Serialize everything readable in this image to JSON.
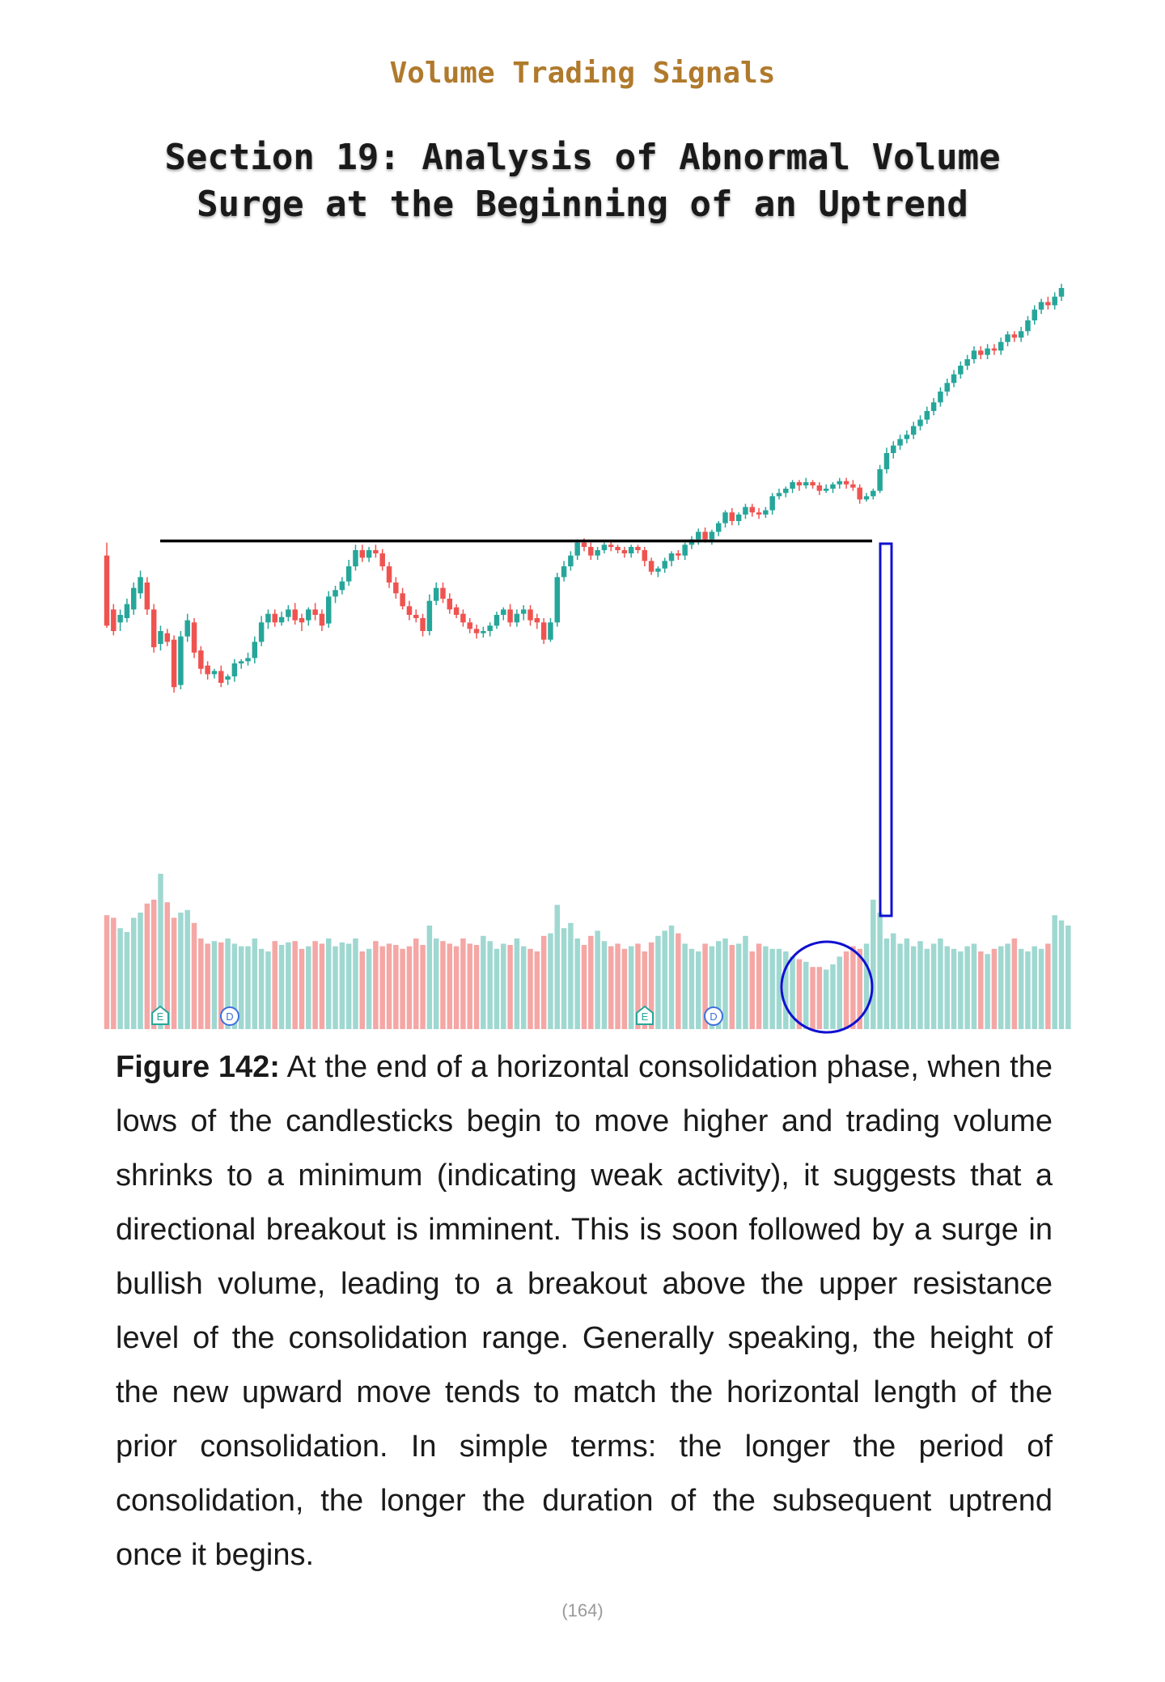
{
  "header": {
    "book_title": "Volume Trading Signals"
  },
  "section": {
    "title_line1": "Section 19: Analysis of Abnormal Volume",
    "title_line2": "Surge at the Beginning of an Uptrend"
  },
  "figure": {
    "label": "Figure 142:",
    "text": " At the end of a horizontal consolidation phase, when the lows of the candlesticks begin to move higher and trading volume shrinks to a minimum (indicating weak activity), it suggests that a directional breakout is imminent. This is soon followed by a surge in bullish volume, leading to a breakout above the upper resistance level of the consolidation range. Generally speaking, the height of the new upward move tends to match the horizontal length of the prior consolidation. In simple terms: the longer the period of consolidation, the longer the duration of the subsequent uptrend once it begins."
  },
  "footer": {
    "page_number": "(164)"
  },
  "colors": {
    "up": "#26a69a",
    "down": "#ef5350",
    "vol_up": "#9fd8d1",
    "vol_down": "#f4a7a5",
    "resistance": "#000000",
    "annotation": "#1010d0"
  },
  "chart_data": {
    "type": "candlestick",
    "title": "",
    "xlabel": "",
    "ylabel": "",
    "price": [
      [
        610,
        545,
        622,
        543
      ],
      [
        560,
        540,
        565,
        536
      ],
      [
        548,
        555,
        560,
        540
      ],
      [
        552,
        565,
        570,
        548
      ],
      [
        560,
        580,
        585,
        555
      ],
      [
        575,
        590,
        596,
        570
      ],
      [
        585,
        560,
        590,
        555
      ],
      [
        560,
        525,
        565,
        520
      ],
      [
        528,
        540,
        545,
        522
      ],
      [
        538,
        530,
        542,
        526
      ],
      [
        532,
        488,
        536,
        483
      ],
      [
        490,
        535,
        540,
        486
      ],
      [
        535,
        550,
        556,
        530
      ],
      [
        548,
        520,
        552,
        515
      ],
      [
        522,
        505,
        526,
        500
      ],
      [
        508,
        500,
        512,
        495
      ],
      [
        500,
        503,
        505,
        496
      ],
      [
        503,
        492,
        508,
        488
      ],
      [
        495,
        498,
        500,
        490
      ],
      [
        498,
        510,
        514,
        493
      ],
      [
        510,
        512,
        514,
        505
      ],
      [
        512,
        515,
        520,
        508
      ],
      [
        515,
        530,
        535,
        510
      ],
      [
        530,
        548,
        554,
        526
      ],
      [
        548,
        556,
        560,
        542
      ],
      [
        556,
        548,
        560,
        544
      ],
      [
        548,
        553,
        558,
        545
      ],
      [
        553,
        560,
        564,
        549
      ],
      [
        560,
        550,
        566,
        546
      ],
      [
        552,
        548,
        556,
        540
      ],
      [
        550,
        560,
        562,
        545
      ],
      [
        560,
        555,
        566,
        550
      ],
      [
        556,
        545,
        560,
        540
      ],
      [
        547,
        572,
        577,
        543
      ],
      [
        572,
        578,
        582,
        566
      ],
      [
        578,
        586,
        590,
        574
      ],
      [
        586,
        600,
        606,
        582
      ],
      [
        600,
        615,
        620,
        596
      ],
      [
        615,
        608,
        620,
        604
      ],
      [
        608,
        615,
        618,
        604
      ],
      [
        615,
        612,
        620,
        608
      ],
      [
        612,
        600,
        616,
        596
      ],
      [
        600,
        585,
        604,
        580
      ],
      [
        585,
        575,
        590,
        570
      ],
      [
        575,
        563,
        580,
        560
      ],
      [
        563,
        555,
        568,
        550
      ],
      [
        555,
        552,
        560,
        548
      ],
      [
        552,
        540,
        556,
        535
      ],
      [
        540,
        568,
        574,
        536
      ],
      [
        568,
        580,
        585,
        564
      ],
      [
        580,
        570,
        585,
        566
      ],
      [
        570,
        560,
        575,
        556
      ],
      [
        562,
        555,
        565,
        552
      ],
      [
        556,
        548,
        560,
        544
      ],
      [
        548,
        542,
        552,
        538
      ],
      [
        542,
        538,
        546,
        533
      ],
      [
        538,
        540,
        544,
        534
      ],
      [
        540,
        545,
        548,
        535
      ],
      [
        545,
        555,
        558,
        542
      ],
      [
        555,
        560,
        562,
        550
      ],
      [
        560,
        548,
        565,
        544
      ],
      [
        548,
        556,
        560,
        544
      ],
      [
        556,
        560,
        564,
        550
      ],
      [
        560,
        550,
        564,
        545
      ],
      [
        552,
        548,
        556,
        542
      ],
      [
        548,
        532,
        552,
        528
      ],
      [
        532,
        548,
        552,
        530
      ],
      [
        548,
        590,
        594,
        544
      ],
      [
        590,
        600,
        605,
        586
      ],
      [
        600,
        610,
        614,
        596
      ],
      [
        610,
        622,
        625,
        606
      ],
      [
        622,
        618,
        626,
        614
      ],
      [
        618,
        610,
        622,
        606
      ],
      [
        610,
        615,
        618,
        606
      ],
      [
        615,
        620,
        622,
        612
      ],
      [
        620,
        618,
        624,
        614
      ],
      [
        618,
        615,
        620,
        612
      ],
      [
        615,
        612,
        618,
        608
      ],
      [
        612,
        618,
        620,
        608
      ],
      [
        618,
        615,
        620,
        612
      ],
      [
        615,
        605,
        618,
        600
      ],
      [
        605,
        595,
        608,
        592
      ],
      [
        595,
        598,
        600,
        590
      ],
      [
        598,
        605,
        608,
        594
      ],
      [
        605,
        612,
        614,
        600
      ],
      [
        612,
        610,
        615,
        606
      ],
      [
        610,
        620,
        622,
        606
      ],
      [
        620,
        625,
        628,
        616
      ],
      [
        625,
        632,
        635,
        620
      ],
      [
        632,
        625,
        636,
        622
      ],
      [
        625,
        632,
        634,
        620
      ],
      [
        632,
        640,
        642,
        628
      ],
      [
        640,
        650,
        652,
        636
      ],
      [
        650,
        642,
        654,
        638
      ],
      [
        642,
        648,
        650,
        638
      ],
      [
        648,
        655,
        658,
        644
      ],
      [
        655,
        650,
        658,
        646
      ],
      [
        650,
        648,
        654,
        644
      ],
      [
        648,
        652,
        655,
        645
      ],
      [
        652,
        665,
        668,
        648
      ],
      [
        665,
        668,
        672,
        662
      ],
      [
        668,
        672,
        674,
        664
      ],
      [
        672,
        678,
        680,
        668
      ],
      [
        678,
        675,
        680,
        670
      ],
      [
        675,
        678,
        682,
        672
      ],
      [
        678,
        675,
        680,
        672
      ],
      [
        675,
        670,
        678,
        666
      ],
      [
        670,
        672,
        676,
        668
      ],
      [
        672,
        676,
        678,
        668
      ],
      [
        676,
        679,
        682,
        672
      ],
      [
        679,
        676,
        682,
        672
      ],
      [
        676,
        673,
        680,
        670
      ],
      [
        673,
        662,
        676,
        658
      ],
      [
        662,
        665,
        668,
        660
      ],
      [
        665,
        670,
        672,
        662
      ],
      [
        670,
        690,
        694,
        668
      ],
      [
        690,
        705,
        710,
        686
      ],
      [
        705,
        712,
        716,
        700
      ],
      [
        712,
        718,
        722,
        708
      ],
      [
        718,
        722,
        726,
        714
      ],
      [
        722,
        730,
        734,
        718
      ],
      [
        730,
        736,
        740,
        726
      ],
      [
        736,
        744,
        748,
        732
      ],
      [
        744,
        752,
        756,
        740
      ],
      [
        752,
        762,
        766,
        748
      ],
      [
        762,
        770,
        774,
        758
      ],
      [
        770,
        778,
        782,
        766
      ],
      [
        778,
        786,
        790,
        774
      ],
      [
        786,
        792,
        796,
        782
      ],
      [
        792,
        800,
        804,
        788
      ],
      [
        800,
        796,
        804,
        792
      ],
      [
        796,
        802,
        806,
        792
      ],
      [
        802,
        800,
        806,
        796
      ],
      [
        800,
        808,
        812,
        796
      ],
      [
        808,
        815,
        818,
        804
      ],
      [
        815,
        812,
        818,
        808
      ],
      [
        812,
        818,
        822,
        808
      ],
      [
        818,
        828,
        832,
        814
      ],
      [
        828,
        838,
        842,
        824
      ],
      [
        838,
        845,
        848,
        834
      ],
      [
        845,
        842,
        850,
        838
      ],
      [
        842,
        850,
        854,
        838
      ],
      [
        850,
        858,
        862,
        846
      ]
    ],
    "volume": [
      88,
      86,
      78,
      75,
      86,
      90,
      97,
      100,
      120,
      98,
      86,
      90,
      92,
      82,
      70,
      66,
      68,
      67,
      70,
      66,
      64,
      64,
      70,
      62,
      60,
      68,
      65,
      67,
      68,
      62,
      64,
      68,
      66,
      70,
      64,
      67,
      66,
      70,
      60,
      62,
      68,
      64,
      66,
      65,
      62,
      64,
      70,
      65,
      80,
      70,
      68,
      66,
      64,
      70,
      66,
      65,
      72,
      68,
      62,
      66,
      65,
      70,
      64,
      62,
      60,
      72,
      74,
      96,
      78,
      82,
      70,
      65,
      72,
      76,
      68,
      64,
      66,
      62,
      64,
      66,
      60,
      67,
      72,
      76,
      80,
      74,
      66,
      62,
      60,
      66,
      64,
      68,
      70,
      65,
      66,
      72,
      60,
      66,
      64,
      62,
      62,
      60,
      56,
      54,
      52,
      48,
      48,
      46,
      50,
      56,
      60,
      64,
      62,
      66,
      100,
      90,
      70,
      74,
      66,
      70,
      64,
      68,
      62,
      66,
      70,
      64,
      62,
      60,
      64,
      66,
      60,
      58,
      62,
      64,
      66,
      70,
      62,
      60,
      64,
      62,
      66,
      88,
      84,
      80
    ],
    "resistance_level": 622,
    "markers": [
      "E",
      "D",
      "E",
      "D"
    ]
  }
}
